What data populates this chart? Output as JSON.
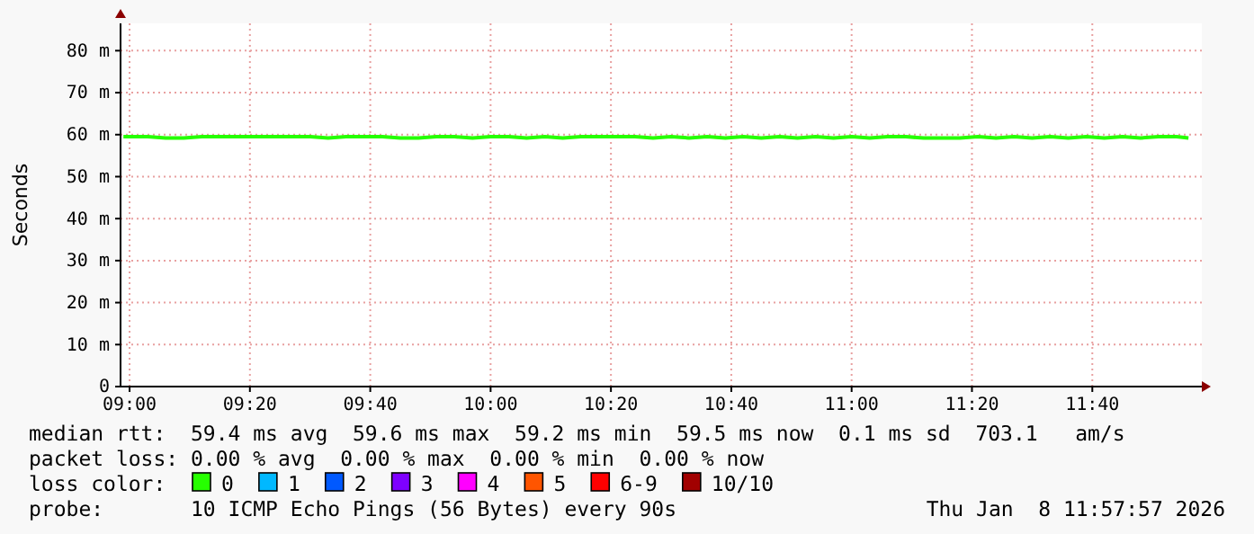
{
  "chart_data": {
    "type": "line",
    "ylabel": "Seconds",
    "legend_title": "loss color:",
    "legend": "bottom",
    "grid": true,
    "xlim": [
      8.975,
      11.97
    ],
    "ylim": [
      0,
      86.5
    ],
    "xticks": [
      {
        "value": 9,
        "label": "09:00"
      },
      {
        "value": 9.3333,
        "label": "09:20"
      },
      {
        "value": 9.6667,
        "label": "09:40"
      },
      {
        "value": 10,
        "label": "10:00"
      },
      {
        "value": 10.3333,
        "label": "10:20"
      },
      {
        "value": 10.6667,
        "label": "10:40"
      },
      {
        "value": 11,
        "label": "11:00"
      },
      {
        "value": 11.3333,
        "label": "11:20"
      },
      {
        "value": 11.6667,
        "label": "11:40"
      }
    ],
    "yticks": [
      0,
      {
        "value": 10,
        "label": "10 m"
      },
      {
        "value": 20,
        "label": "20 m"
      },
      {
        "value": 30,
        "label": "30 m"
      },
      {
        "value": 40,
        "label": "40 m"
      },
      {
        "value": 50,
        "label": "50 m"
      },
      {
        "value": 60,
        "label": "60 m"
      },
      {
        "value": 70,
        "label": "70 m"
      },
      {
        "value": 80,
        "label": "80 m"
      }
    ],
    "x": [
      8.983,
      9.0,
      9.05,
      9.1,
      9.15,
      9.2,
      9.25,
      9.3,
      9.35,
      9.4,
      9.45,
      9.5,
      9.55,
      9.6,
      9.65,
      9.7,
      9.75,
      9.8,
      9.85,
      9.9,
      9.95,
      10.0,
      10.05,
      10.1,
      10.15,
      10.2,
      10.25,
      10.3,
      10.35,
      10.4,
      10.45,
      10.5,
      10.55,
      10.6,
      10.65,
      10.7,
      10.75,
      10.8,
      10.85,
      10.9,
      10.95,
      11.0,
      11.05,
      11.1,
      11.15,
      11.2,
      11.25,
      11.3,
      11.35,
      11.4,
      11.45,
      11.5,
      11.55,
      11.6,
      11.65,
      11.7,
      11.75,
      11.8,
      11.85,
      11.9,
      11.933
    ],
    "series": [
      {
        "name": "0",
        "color": "#26ff00",
        "values": [
          59.5,
          59.5,
          59.5,
          59.2,
          59.2,
          59.5,
          59.5,
          59.5,
          59.5,
          59.5,
          59.5,
          59.5,
          59.2,
          59.5,
          59.5,
          59.5,
          59.2,
          59.2,
          59.5,
          59.5,
          59.2,
          59.5,
          59.5,
          59.2,
          59.5,
          59.2,
          59.5,
          59.5,
          59.5,
          59.5,
          59.2,
          59.5,
          59.2,
          59.5,
          59.2,
          59.5,
          59.2,
          59.5,
          59.2,
          59.5,
          59.2,
          59.5,
          59.2,
          59.5,
          59.5,
          59.2,
          59.2,
          59.2,
          59.5,
          59.2,
          59.5,
          59.2,
          59.5,
          59.2,
          59.5,
          59.2,
          59.5,
          59.2,
          59.5,
          59.5,
          59.2
        ]
      },
      {
        "name": "1",
        "color": "#00b8ff",
        "values": [
          null,
          null,
          null,
          null,
          null,
          null,
          null,
          null,
          null,
          null,
          null,
          null,
          null,
          null,
          null,
          null,
          null,
          null,
          null,
          null,
          null,
          null,
          null,
          null,
          null,
          null,
          null,
          null,
          null,
          null,
          null,
          null,
          null,
          null,
          null,
          null,
          null,
          null,
          null,
          null,
          null,
          null,
          null,
          null,
          null,
          null,
          null,
          null,
          null,
          null,
          null,
          null,
          null,
          null,
          null,
          null,
          null,
          null,
          null,
          null,
          null
        ]
      },
      {
        "name": "2",
        "color": "#0059ff",
        "values": [
          null,
          null,
          null,
          null,
          null,
          null,
          null,
          null,
          null,
          null,
          null,
          null,
          null,
          null,
          null,
          null,
          null,
          null,
          null,
          null,
          null,
          null,
          null,
          null,
          null,
          null,
          null,
          null,
          null,
          null,
          null,
          null,
          null,
          null,
          null,
          null,
          null,
          null,
          null,
          null,
          null,
          null,
          null,
          null,
          null,
          null,
          null,
          null,
          null,
          null,
          null,
          null,
          null,
          null,
          null,
          null,
          null,
          null,
          null,
          null,
          null
        ]
      },
      {
        "name": "3",
        "color": "#7e00ff",
        "values": [
          null,
          null,
          null,
          null,
          null,
          null,
          null,
          null,
          null,
          null,
          null,
          null,
          null,
          null,
          null,
          null,
          null,
          null,
          null,
          null,
          null,
          null,
          null,
          null,
          null,
          null,
          null,
          null,
          null,
          null,
          null,
          null,
          null,
          null,
          null,
          null,
          null,
          null,
          null,
          null,
          null,
          null,
          null,
          null,
          null,
          null,
          null,
          null,
          null,
          null,
          null,
          null,
          null,
          null,
          null,
          null,
          null,
          null,
          null,
          null,
          null
        ]
      },
      {
        "name": "4",
        "color": "#ff00ff",
        "values": [
          null,
          null,
          null,
          null,
          null,
          null,
          null,
          null,
          null,
          null,
          null,
          null,
          null,
          null,
          null,
          null,
          null,
          null,
          null,
          null,
          null,
          null,
          null,
          null,
          null,
          null,
          null,
          null,
          null,
          null,
          null,
          null,
          null,
          null,
          null,
          null,
          null,
          null,
          null,
          null,
          null,
          null,
          null,
          null,
          null,
          null,
          null,
          null,
          null,
          null,
          null,
          null,
          null,
          null,
          null,
          null,
          null,
          null,
          null,
          null,
          null
        ]
      },
      {
        "name": "5",
        "color": "#ff5500",
        "values": [
          null,
          null,
          null,
          null,
          null,
          null,
          null,
          null,
          null,
          null,
          null,
          null,
          null,
          null,
          null,
          null,
          null,
          null,
          null,
          null,
          null,
          null,
          null,
          null,
          null,
          null,
          null,
          null,
          null,
          null,
          null,
          null,
          null,
          null,
          null,
          null,
          null,
          null,
          null,
          null,
          null,
          null,
          null,
          null,
          null,
          null,
          null,
          null,
          null,
          null,
          null,
          null,
          null,
          null,
          null,
          null,
          null,
          null,
          null,
          null,
          null
        ]
      },
      {
        "name": "6-9",
        "color": "#ff0000",
        "values": [
          null,
          null,
          null,
          null,
          null,
          null,
          null,
          null,
          null,
          null,
          null,
          null,
          null,
          null,
          null,
          null,
          null,
          null,
          null,
          null,
          null,
          null,
          null,
          null,
          null,
          null,
          null,
          null,
          null,
          null,
          null,
          null,
          null,
          null,
          null,
          null,
          null,
          null,
          null,
          null,
          null,
          null,
          null,
          null,
          null,
          null,
          null,
          null,
          null,
          null,
          null,
          null,
          null,
          null,
          null,
          null,
          null,
          null,
          null,
          null,
          null
        ]
      },
      {
        "name": "10/10",
        "color": "#a10000",
        "values": [
          null,
          null,
          null,
          null,
          null,
          null,
          null,
          null,
          null,
          null,
          null,
          null,
          null,
          null,
          null,
          null,
          null,
          null,
          null,
          null,
          null,
          null,
          null,
          null,
          null,
          null,
          null,
          null,
          null,
          null,
          null,
          null,
          null,
          null,
          null,
          null,
          null,
          null,
          null,
          null,
          null,
          null,
          null,
          null,
          null,
          null,
          null,
          null,
          null,
          null,
          null,
          null,
          null,
          null,
          null,
          null,
          null,
          null,
          null,
          null,
          null
        ]
      }
    ],
    "annotations": [
      "median rtt:  59.4 ms avg  59.6 ms max  59.2 ms min  59.5 ms now  0.1 ms sd  703.1   am/s",
      "packet loss: 0.00 % avg  0.00 % max  0.00 % min  0.00 % now",
      "probe:       10 ICMP Echo Pings (56 Bytes) every 90s",
      "Thu Jan  8 11:57:57 2026"
    ]
  }
}
